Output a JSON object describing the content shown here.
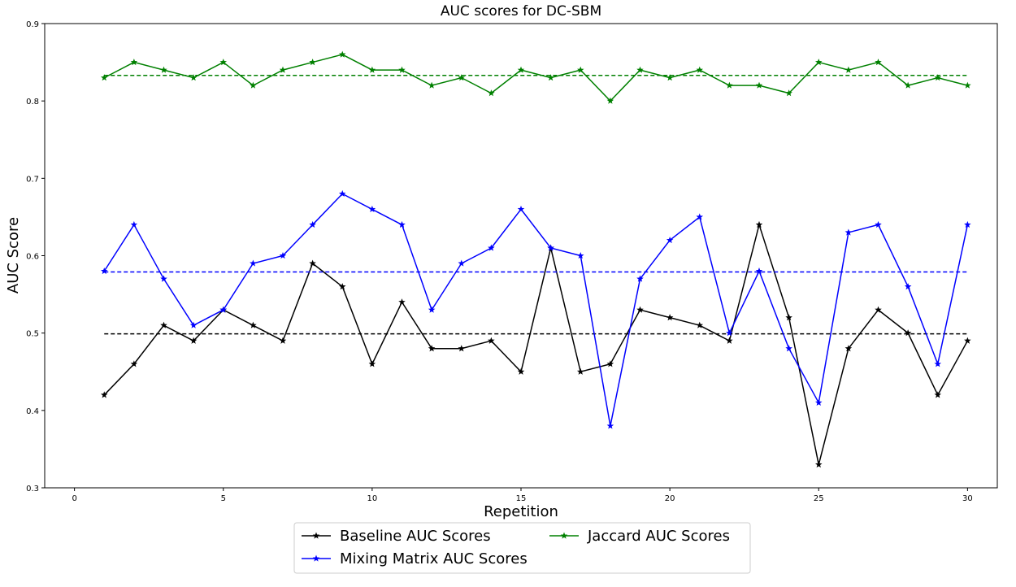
{
  "chart_data": {
    "type": "line",
    "title": "AUC scores for DC-SBM",
    "xlabel": "Repetition",
    "ylabel": "AUC Score",
    "xlim": [
      -1,
      31
    ],
    "ylim": [
      0.3,
      0.9
    ],
    "xticks": [
      0,
      5,
      10,
      15,
      20,
      25,
      30
    ],
    "yticks": [
      0.3,
      0.4,
      0.5,
      0.6,
      0.7,
      0.8,
      0.9
    ],
    "grid": false,
    "legend_position": "bottom-center",
    "x": [
      1,
      2,
      3,
      4,
      5,
      6,
      7,
      8,
      9,
      10,
      11,
      12,
      13,
      14,
      15,
      16,
      17,
      18,
      19,
      20,
      21,
      22,
      23,
      24,
      25,
      26,
      27,
      28,
      29,
      30
    ],
    "series": [
      {
        "name": "Baseline AUC Scores",
        "color": "#000000",
        "marker": "star",
        "values": [
          0.42,
          0.46,
          0.51,
          0.49,
          0.53,
          0.51,
          0.49,
          0.59,
          0.56,
          0.46,
          0.54,
          0.48,
          0.48,
          0.49,
          0.45,
          0.61,
          0.45,
          0.46,
          0.53,
          0.52,
          0.51,
          0.49,
          0.64,
          0.52,
          0.33,
          0.48,
          0.53,
          0.5,
          0.42,
          0.49
        ],
        "mean": 0.499
      },
      {
        "name": "Mixing Matrix AUC Scores",
        "color": "#0000ff",
        "marker": "star",
        "values": [
          0.58,
          0.64,
          0.57,
          0.51,
          0.53,
          0.59,
          0.6,
          0.64,
          0.68,
          0.66,
          0.64,
          0.53,
          0.59,
          0.61,
          0.66,
          0.61,
          0.6,
          0.38,
          0.57,
          0.62,
          0.65,
          0.5,
          0.58,
          0.48,
          0.41,
          0.63,
          0.64,
          0.56,
          0.46,
          0.64
        ],
        "mean": 0.579
      },
      {
        "name": "Jaccard AUC Scores",
        "color": "#008000",
        "marker": "star",
        "values": [
          0.83,
          0.85,
          0.84,
          0.83,
          0.85,
          0.82,
          0.84,
          0.85,
          0.86,
          0.84,
          0.84,
          0.82,
          0.83,
          0.81,
          0.84,
          0.83,
          0.84,
          0.8,
          0.84,
          0.83,
          0.84,
          0.82,
          0.82,
          0.81,
          0.85,
          0.84,
          0.85,
          0.82,
          0.83,
          0.82
        ],
        "mean": 0.833
      }
    ]
  }
}
